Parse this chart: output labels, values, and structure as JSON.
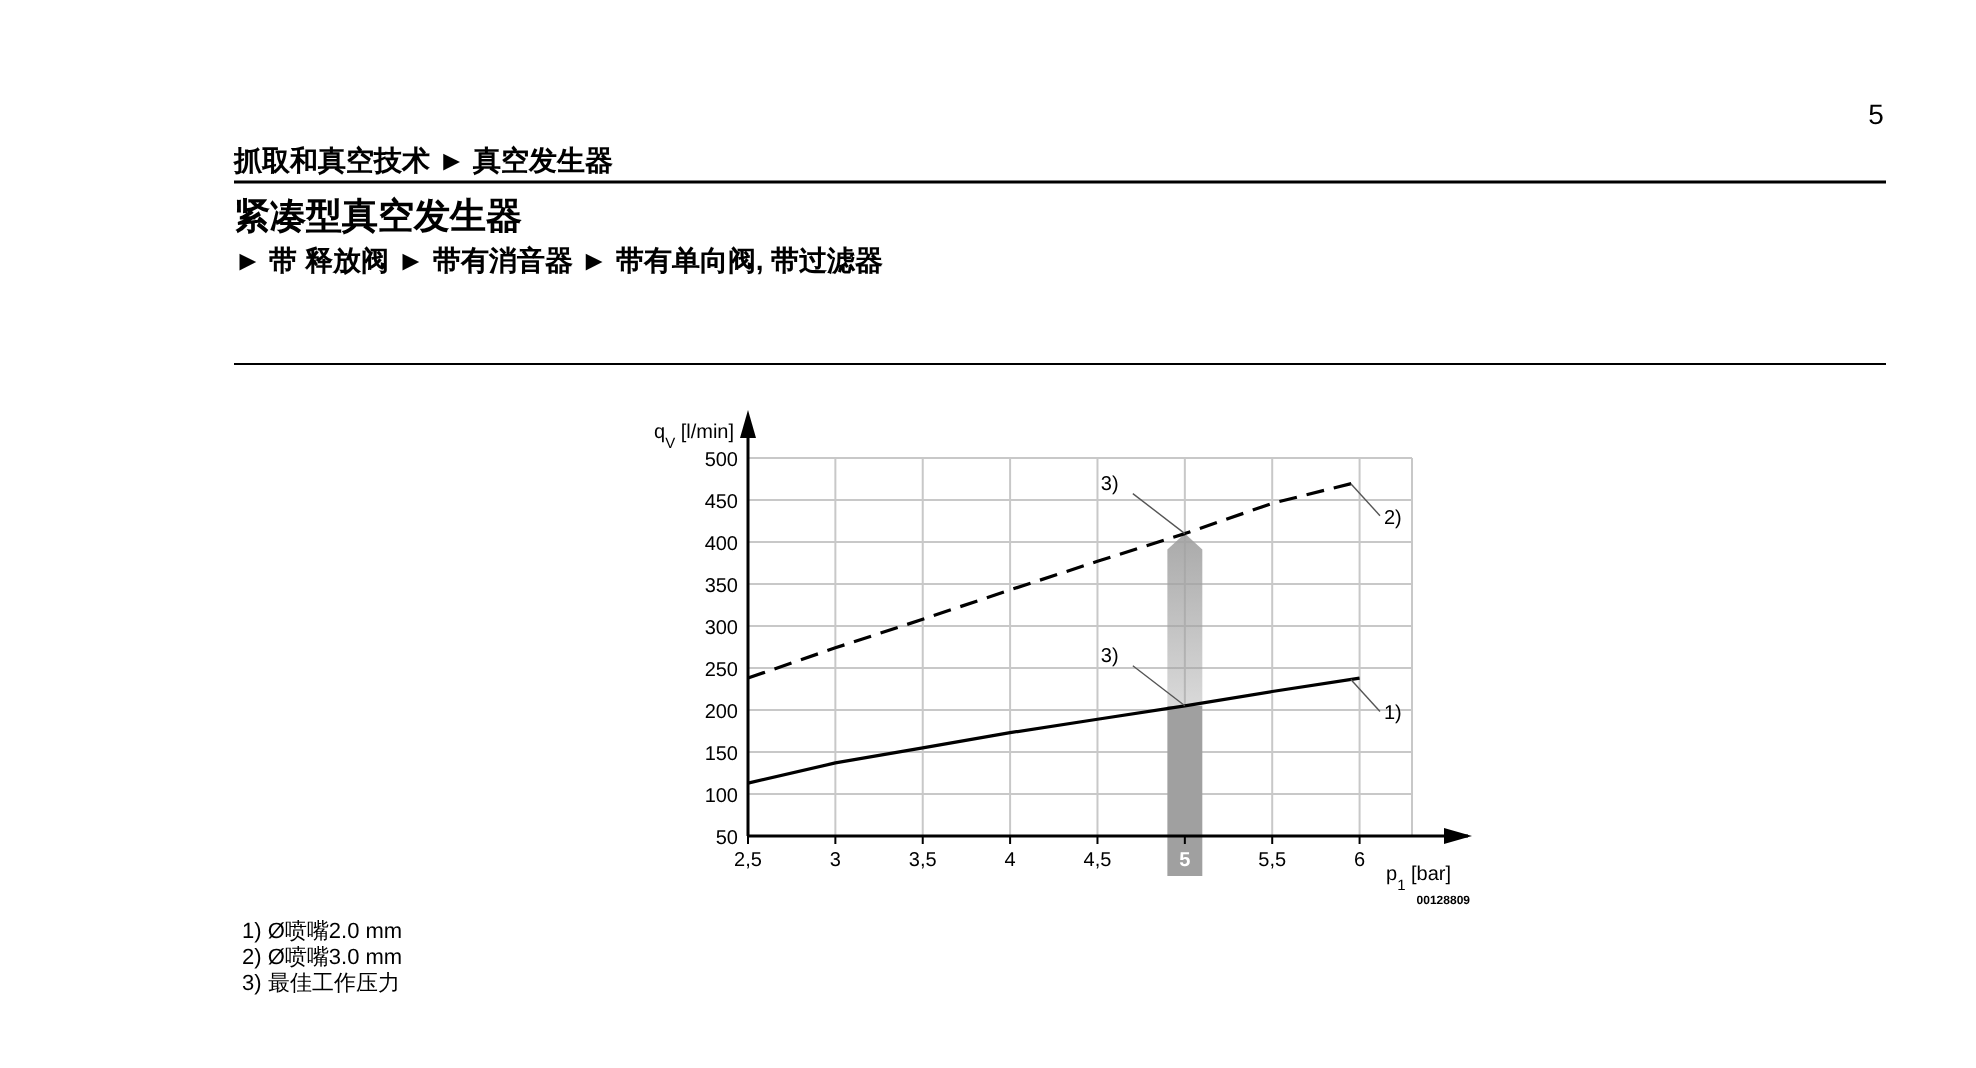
{
  "chart_data": {
    "type": "line",
    "title": "紧凑型真空发生器",
    "subtitle": "► 带 释放阀 ► 带有消音器 ► 带有单向阀, 带过滤器",
    "xlabel": "p$_{1}$ [bar]",
    "ylabel": "q$_{V}$ [l/min]",
    "x": [
      2.5,
      3,
      3.5,
      4,
      4.5,
      5,
      5.5,
      6
    ],
    "series": [
      {
        "name": "1)",
        "color": "#000000",
        "line_style": "solid",
        "values": [
          113,
          137,
          155,
          173,
          189,
          205,
          222,
          238
        ]
      },
      {
        "name": "2)",
        "color": "#000000",
        "line_style": "dashed",
        "values": [
          238,
          274,
          308,
          343,
          377,
          410,
          446,
          472
        ]
      }
    ],
    "xlim": [
      2.5,
      6.3
    ],
    "ylim": [
      50,
      500
    ],
    "xticks": [
      {
        "value": 2.5,
        "label": "2,5"
      },
      3,
      {
        "value": 3.5,
        "label": "3,5"
      },
      4,
      {
        "value": 4.5,
        "label": "4,5"
      },
      5,
      {
        "value": 5.5,
        "label": "5,5"
      },
      6
    ],
    "yticks": [
      50,
      100,
      150,
      200,
      250,
      300,
      350,
      400,
      450,
      500
    ],
    "grid": true,
    "bands": [
      {
        "axis": "x",
        "from": 4.9,
        "to": 5.1,
        "color": "#a0a0a0"
      }
    ],
    "annotations": [
      "抓取和真空技术 ► 真空发生器",
      "5",
      {
        "text": "3)",
        "x": 5,
        "y": 410
      },
      {
        "text": "3)",
        "x": 5,
        "y": 205
      },
      "00128809",
      "1) Ø喷嘴2.0 mm",
      "2) Ø喷嘴3.0 mm",
      "3) 最佳工作压力"
    ]
  }
}
